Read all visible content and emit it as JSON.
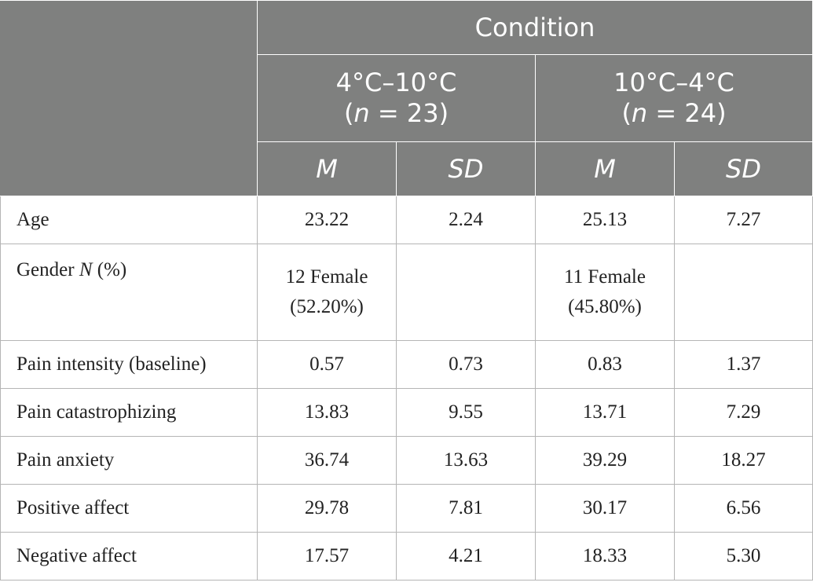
{
  "header": {
    "group_title": "Condition",
    "conditions": [
      {
        "label": "4°C–10°C",
        "n_prefix": "(",
        "n_var": "n",
        "n_rest": " = 23)"
      },
      {
        "label": "10°C–4°C",
        "n_prefix": "(",
        "n_var": "n",
        "n_rest": " = 24)"
      }
    ],
    "stat_labels": [
      "M",
      "SD",
      "M",
      "SD"
    ]
  },
  "rows": [
    {
      "label": "Age",
      "values": [
        "23.22",
        "2.24",
        "25.13",
        "7.27"
      ]
    },
    {
      "label_main": "Gender ",
      "label_var": "N",
      "label_rest": " (%)",
      "values_line1": [
        "12 Female",
        "",
        "11 Female",
        ""
      ],
      "values_line2": [
        "(52.20%)",
        "",
        "(45.80%)",
        ""
      ]
    },
    {
      "label": "Pain intensity (baseline)",
      "values": [
        "0.57",
        "0.73",
        "0.83",
        "1.37"
      ]
    },
    {
      "label": "Pain catastrophizing",
      "values": [
        "13.83",
        "9.55",
        "13.71",
        "7.29"
      ]
    },
    {
      "label": "Pain anxiety",
      "values": [
        "36.74",
        "13.63",
        "39.29",
        "18.27"
      ]
    },
    {
      "label": "Positive affect",
      "values": [
        "29.78",
        "7.81",
        "30.17",
        "6.56"
      ]
    },
    {
      "label": "Negative affect",
      "values": [
        "17.57",
        "4.21",
        "18.33",
        "5.30"
      ]
    }
  ]
}
